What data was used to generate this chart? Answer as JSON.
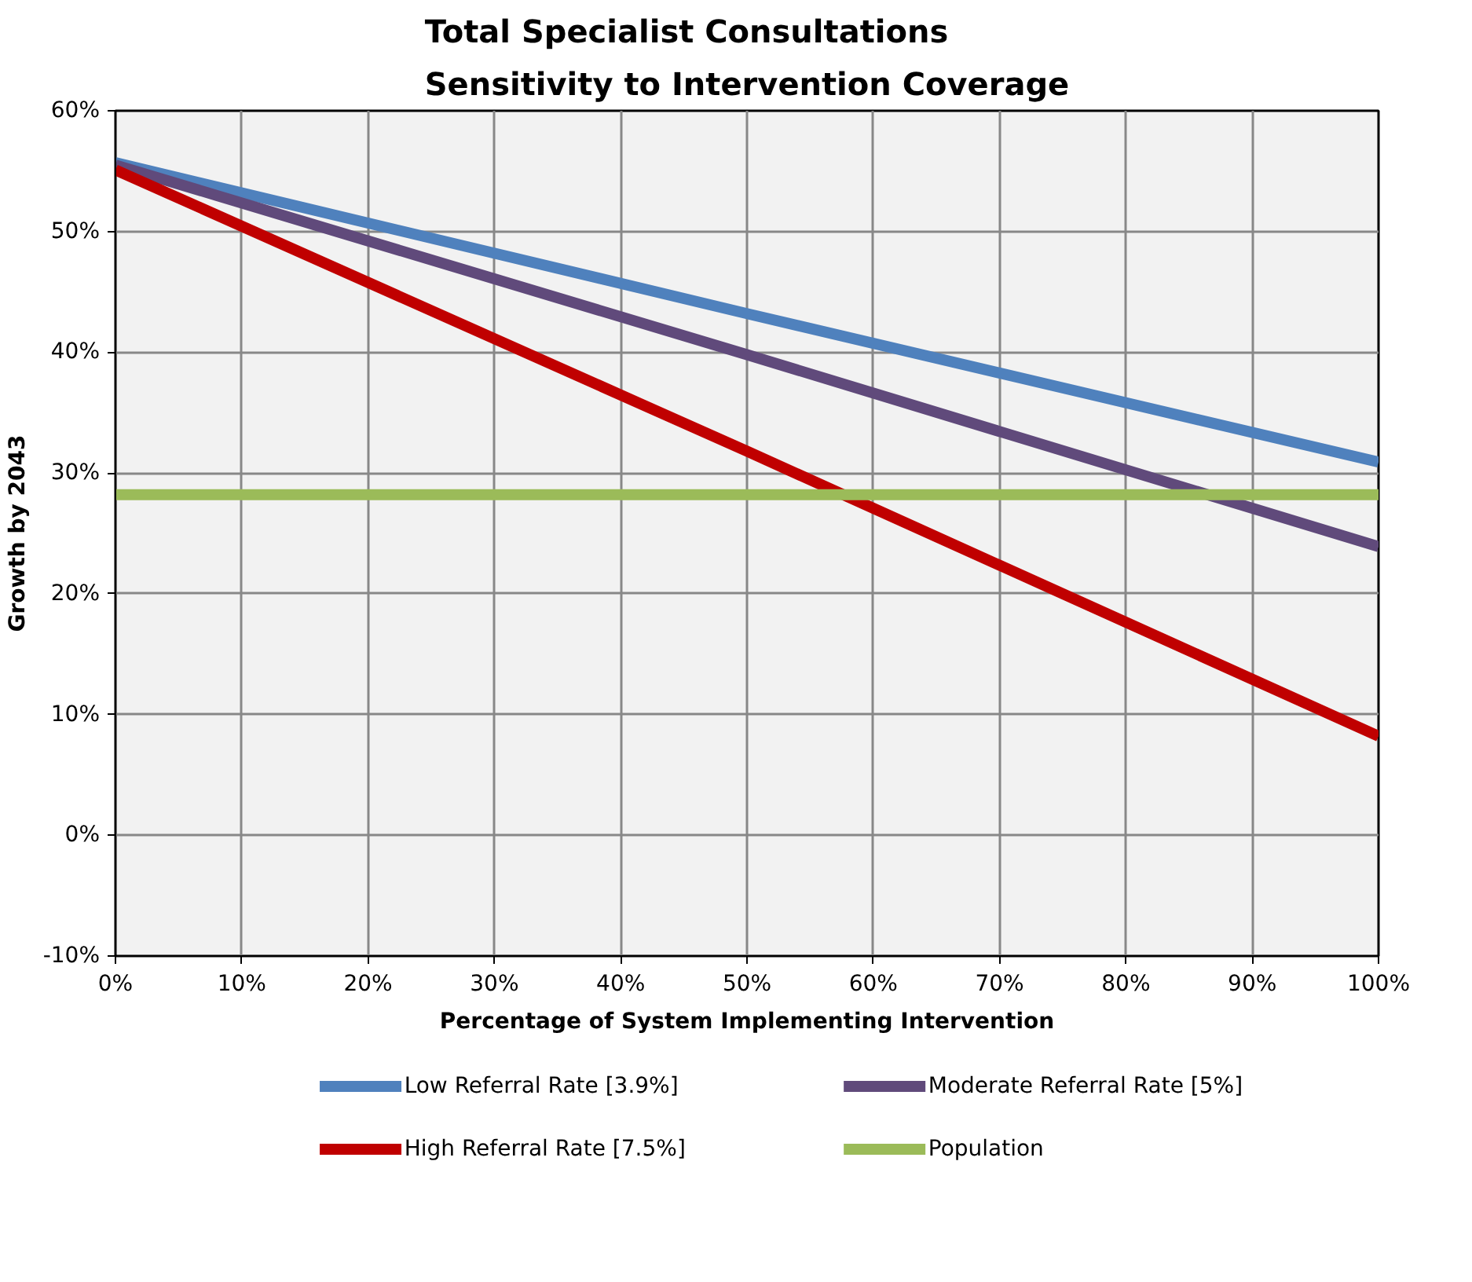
{
  "chart_data": {
    "type": "line",
    "title": "Total Specialist Consultations\nSensitivity to Intervention Coverage",
    "xlabel": "Percentage of System Implementing Intervention",
    "ylabel": "Growth by 2043",
    "x": [
      0,
      50,
      100
    ],
    "series": [
      {
        "name": "Low Referral Rate [3.9%]",
        "color": "#4f81bd",
        "values": [
          55.7,
          43.2,
          30.9
        ]
      },
      {
        "name": "Moderate Referral Rate [5%]",
        "color": "#604a7b",
        "values": [
          55.5,
          39.8,
          23.9
        ]
      },
      {
        "name": "High Referral Rate [7.5%]",
        "color": "#c00000",
        "values": [
          55.1,
          31.8,
          8.2
        ]
      },
      {
        "name": "Population",
        "color": "#9bbb59",
        "values": [
          28.2,
          28.2,
          28.2
        ]
      }
    ],
    "xlim": [
      0,
      100
    ],
    "ylim": [
      -10,
      60
    ],
    "xticks": [
      {
        "value": 0,
        "label": "0%"
      },
      {
        "value": 10,
        "label": "10%"
      },
      {
        "value": 20,
        "label": "20%"
      },
      {
        "value": 30,
        "label": "30%"
      },
      {
        "value": 40,
        "label": "40%"
      },
      {
        "value": 50,
        "label": "50%"
      },
      {
        "value": 60,
        "label": "60%"
      },
      {
        "value": 70,
        "label": "70%"
      },
      {
        "value": 80,
        "label": "80%"
      },
      {
        "value": 90,
        "label": "90%"
      },
      {
        "value": 100,
        "label": "100%"
      }
    ],
    "yticks": [
      {
        "value": -10,
        "label": "-10%"
      },
      {
        "value": 0,
        "label": "0%"
      },
      {
        "value": 10,
        "label": "10%"
      },
      {
        "value": 20,
        "label": "20%"
      },
      {
        "value": 30,
        "label": "30%"
      },
      {
        "value": 40,
        "label": "40%"
      },
      {
        "value": 50,
        "label": "50%"
      },
      {
        "value": 60,
        "label": "60%"
      }
    ],
    "grid": true,
    "legend": "bottom",
    "marker": "none",
    "line_style": "solid"
  }
}
